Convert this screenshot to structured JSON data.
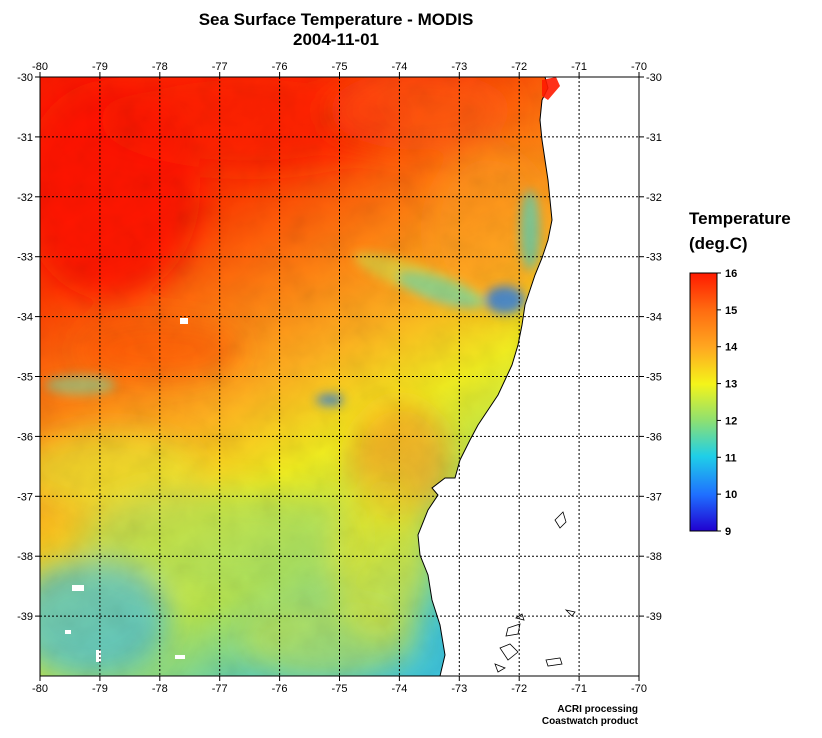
{
  "title": {
    "line1": "Sea Surface Temperature - MODIS",
    "line2": "2004-11-01"
  },
  "map": {
    "lon_ticks": [
      "-80",
      "-79",
      "-78",
      "-77",
      "-76",
      "-75",
      "-74",
      "-73",
      "-72",
      "-71",
      "-70"
    ],
    "lat_ticks": [
      "-30",
      "-31",
      "-32",
      "-33",
      "-34",
      "-35",
      "-36",
      "-37",
      "-38",
      "-39"
    ],
    "lon_range": [
      -80,
      -70
    ],
    "lat_range": [
      -30,
      -40
    ],
    "grid": "dotted",
    "land_color": "#ffffff",
    "coastline_color": "#000000"
  },
  "colorbar": {
    "title_line1": "Temperature",
    "title_line2": "(deg.C)",
    "ticks": [
      "16",
      "15",
      "14",
      "13",
      "12",
      "11",
      "10",
      "9"
    ],
    "min": 9,
    "max": 16,
    "colors": [
      "#2000d0",
      "#1f6fff",
      "#1fcfe8",
      "#8fe070",
      "#f4f41a",
      "#ffa820",
      "#ff6a10",
      "#ff1a00"
    ]
  },
  "footer": {
    "line1": "ACRI processing",
    "line2": "Coastwatch product"
  }
}
